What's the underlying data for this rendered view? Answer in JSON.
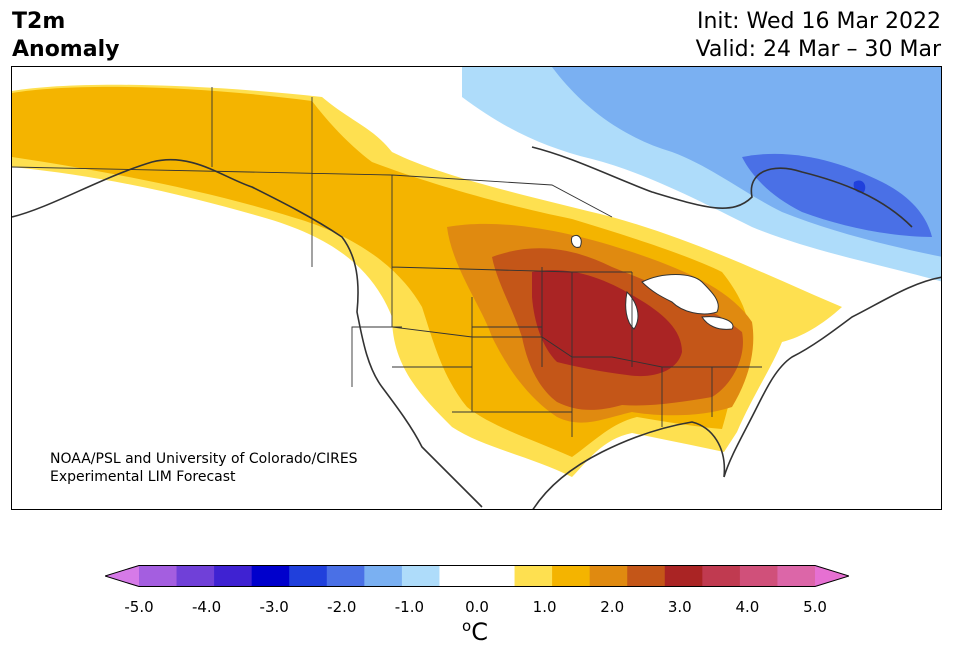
{
  "header": {
    "title_line1": "T2m",
    "title_line2": "Anomaly",
    "init": "Init: Wed 16 Mar 2022",
    "valid": "Valid: 24 Mar – 30 Mar"
  },
  "credit": {
    "line1": "NOAA/PSL and University of Colorado/CIRES",
    "line2": "Experimental LIM Forecast"
  },
  "colorbar": {
    "ticks": [
      "-5.0",
      "-4.0",
      "-3.0",
      "-2.0",
      "-1.0",
      "0.0",
      "1.0",
      "2.0",
      "3.0",
      "4.0",
      "5.0"
    ],
    "unit_sup": "o",
    "unit": "C",
    "colors": [
      "#d67ae8",
      "#a45ee0",
      "#7040d8",
      "#3f22d2",
      "#0000cc",
      "#2040dc",
      "#4a70e6",
      "#7ab0f2",
      "#aedcfa",
      "#ffffff",
      "#ffffff",
      "#fee050",
      "#f4b400",
      "#e08a10",
      "#c45618",
      "#aa2424",
      "#c03a50",
      "#d0507a",
      "#dc66a8",
      "#e670d2"
    ]
  },
  "map": {
    "colors": {
      "land": "#ffffff",
      "pos1": "#fee050",
      "pos2": "#f4b400",
      "pos3": "#e08a10",
      "pos4": "#c45618",
      "pos5": "#aa2424",
      "neg1": "#aedcfa",
      "neg2": "#7ab0f2",
      "neg3": "#4a70e6",
      "neg4": "#2040dc",
      "outline": "#333333"
    }
  }
}
